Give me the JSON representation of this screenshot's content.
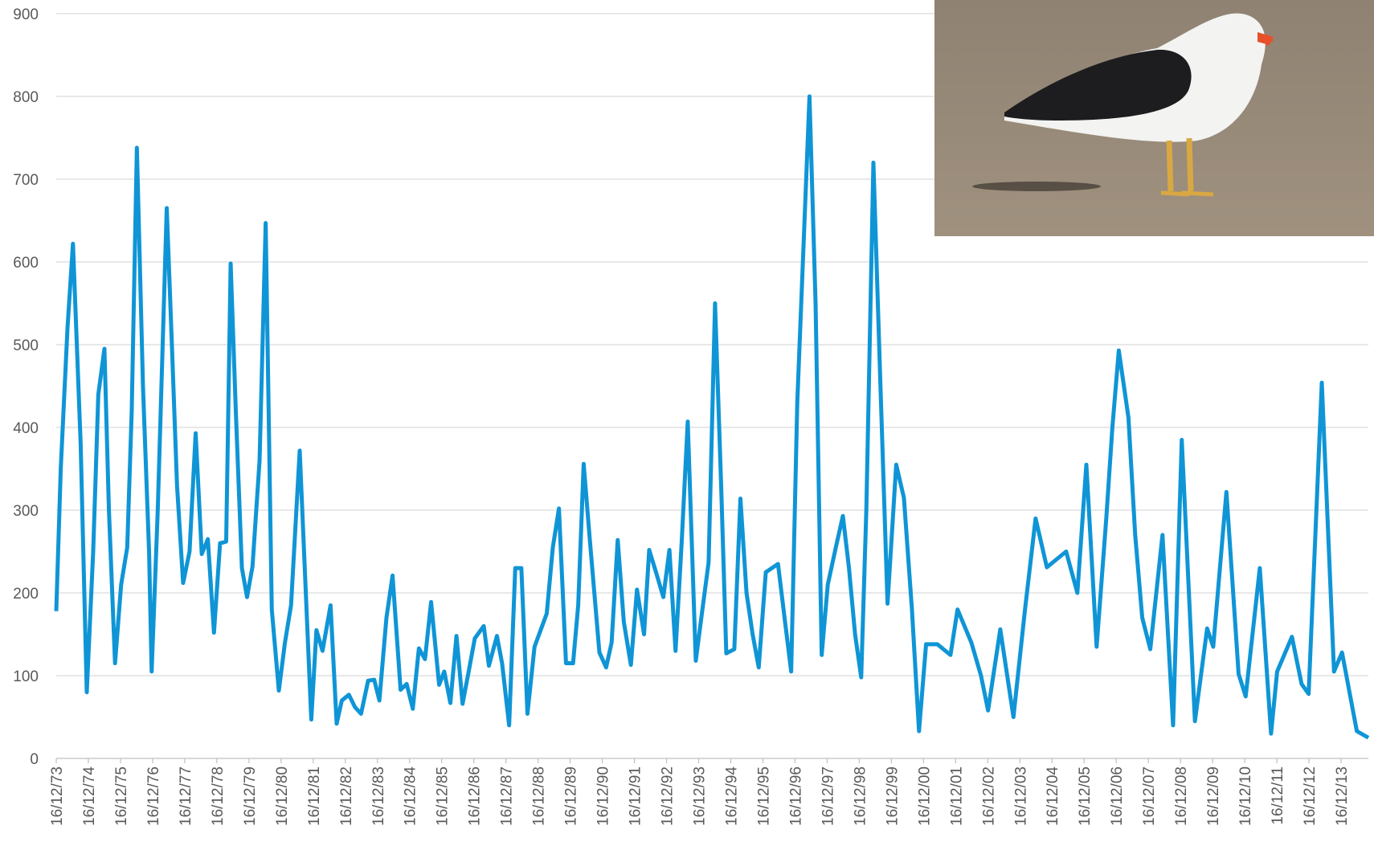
{
  "chart_data": {
    "type": "line",
    "x": [
      1973.96,
      1974.1,
      1974.31,
      1974.48,
      1974.72,
      1974.91,
      1975.11,
      1975.27,
      1975.46,
      1975.6,
      1975.79,
      1975.98,
      1976.17,
      1976.31,
      1976.47,
      1976.66,
      1976.85,
      1976.93,
      1977.12,
      1977.4,
      1977.56,
      1977.72,
      1977.91,
      1978.11,
      1978.3,
      1978.49,
      1978.68,
      1978.87,
      1979.06,
      1979.25,
      1979.39,
      1979.55,
      1979.74,
      1979.9,
      1980.07,
      1980.29,
      1980.48,
      1980.67,
      1980.89,
      1981.08,
      1981.27,
      1981.54,
      1981.73,
      1981.9,
      1982.06,
      1982.25,
      1982.5,
      1982.69,
      1982.85,
      1983.07,
      1983.26,
      1983.45,
      1983.67,
      1983.86,
      1984.02,
      1984.24,
      1984.43,
      1984.68,
      1984.87,
      1985.06,
      1985.25,
      1985.44,
      1985.63,
      1985.88,
      1986.04,
      1986.23,
      1986.42,
      1986.61,
      1986.8,
      1986.99,
      1987.27,
      1987.43,
      1987.68,
      1987.84,
      1988.06,
      1988.25,
      1988.44,
      1988.63,
      1988.85,
      1989.04,
      1989.23,
      1989.42,
      1989.61,
      1989.83,
      1990.05,
      1990.21,
      1990.38,
      1990.57,
      1990.87,
      1991.08,
      1991.25,
      1991.44,
      1991.63,
      1991.85,
      1992.04,
      1992.26,
      1992.42,
      1992.64,
      1992.86,
      1993.05,
      1993.24,
      1993.43,
      1993.62,
      1993.87,
      1994.06,
      1994.27,
      1994.47,
      1994.66,
      1994.82,
      1995.07,
      1995.26,
      1995.45,
      1995.64,
      1995.83,
      1996.05,
      1996.24,
      1996.43,
      1996.65,
      1996.84,
      1997.03,
      1997.41,
      1997.6,
      1997.79,
      1997.98,
      1998.23,
      1998.45,
      1998.64,
      1998.83,
      1999.02,
      1999.18,
      1999.4,
      1999.62,
      1999.84,
      2000.11,
      2000.35,
      2000.6,
      2000.82,
      2001.04,
      2001.39,
      2001.8,
      2002.02,
      2002.45,
      2002.75,
      2002.97,
      2003.35,
      2003.76,
      2004.12,
      2004.45,
      2004.8,
      2005.4,
      2005.75,
      2006.03,
      2006.35,
      2006.65,
      2006.84,
      2007.04,
      2007.34,
      2007.55,
      2007.77,
      2008.02,
      2008.4,
      2008.73,
      2009.0,
      2009.41,
      2009.79,
      2009.98,
      2010.39,
      2010.77,
      2010.99,
      2011.43,
      2011.78,
      2011.97,
      2012.43,
      2012.73,
      2012.95,
      2013.36,
      2013.74,
      2013.99,
      2014.45,
      2014.81
    ],
    "series": [
      {
        "color": "#0f95d6",
        "values": [
          178,
          350,
          520,
          622,
          380,
          80,
          250,
          440,
          495,
          300,
          115,
          210,
          255,
          420,
          738,
          450,
          250,
          105,
          300,
          665,
          500,
          330,
          212,
          250,
          393,
          247,
          265,
          152,
          260,
          262,
          598,
          420,
          230,
          195,
          232,
          360,
          647,
          180,
          82,
          140,
          185,
          372,
          200,
          47,
          155,
          130,
          185,
          42,
          70,
          77,
          62,
          54,
          94,
          95,
          70,
          170,
          221,
          83,
          90,
          60,
          133,
          120,
          189,
          89,
          105,
          67,
          148,
          66,
          105,
          145,
          160,
          112,
          148,
          115,
          40,
          230,
          230,
          54,
          135,
          155,
          175,
          255,
          302,
          115,
          115,
          185,
          356,
          265,
          128,
          110,
          140,
          264,
          165,
          113,
          204,
          150,
          252,
          224,
          195,
          252,
          130,
          260,
          407,
          118,
          175,
          237,
          550,
          330,
          127,
          132,
          314,
          200,
          150,
          110,
          225,
          230,
          235,
          165,
          105,
          430,
          800,
          550,
          125,
          210,
          255,
          293,
          230,
          150,
          98,
          300,
          720,
          450,
          187,
          355,
          315,
          180,
          33,
          138,
          138,
          125,
          180,
          140,
          100,
          58,
          156,
          50,
          180,
          290,
          231,
          250,
          200,
          355,
          135,
          290,
          400,
          493,
          412,
          270,
          170,
          132,
          270,
          40,
          385,
          45,
          157,
          135,
          322,
          102,
          75,
          230,
          30,
          105,
          147,
          90,
          78,
          454,
          105,
          128,
          33,
          25
        ]
      }
    ],
    "xlim": [
      1973.96,
      2014.81
    ],
    "xticks": [
      {
        "value": 1973.96,
        "label": "16/12/73"
      },
      {
        "value": 1974.96,
        "label": "16/12/74"
      },
      {
        "value": 1975.96,
        "label": "16/12/75"
      },
      {
        "value": 1976.96,
        "label": "16/12/76"
      },
      {
        "value": 1977.96,
        "label": "16/12/77"
      },
      {
        "value": 1978.96,
        "label": "16/12/78"
      },
      {
        "value": 1979.96,
        "label": "16/12/79"
      },
      {
        "value": 1980.96,
        "label": "16/12/80"
      },
      {
        "value": 1981.96,
        "label": "16/12/81"
      },
      {
        "value": 1982.96,
        "label": "16/12/82"
      },
      {
        "value": 1983.96,
        "label": "16/12/83"
      },
      {
        "value": 1984.96,
        "label": "16/12/84"
      },
      {
        "value": 1985.96,
        "label": "16/12/85"
      },
      {
        "value": 1986.96,
        "label": "16/12/86"
      },
      {
        "value": 1987.96,
        "label": "16/12/87"
      },
      {
        "value": 1988.96,
        "label": "16/12/88"
      },
      {
        "value": 1989.96,
        "label": "16/12/89"
      },
      {
        "value": 1990.96,
        "label": "16/12/90"
      },
      {
        "value": 1991.96,
        "label": "16/12/91"
      },
      {
        "value": 1992.96,
        "label": "16/12/92"
      },
      {
        "value": 1993.96,
        "label": "16/12/93"
      },
      {
        "value": 1994.96,
        "label": "16/12/94"
      },
      {
        "value": 1995.96,
        "label": "16/12/95"
      },
      {
        "value": 1996.96,
        "label": "16/12/96"
      },
      {
        "value": 1997.96,
        "label": "16/12/97"
      },
      {
        "value": 1998.96,
        "label": "16/12/98"
      },
      {
        "value": 1999.96,
        "label": "16/12/99"
      },
      {
        "value": 2000.96,
        "label": "16/12/00"
      },
      {
        "value": 2001.96,
        "label": "16/12/01"
      },
      {
        "value": 2002.96,
        "label": "16/12/02"
      },
      {
        "value": 2003.96,
        "label": "16/12/03"
      },
      {
        "value": 2004.96,
        "label": "16/12/04"
      },
      {
        "value": 2005.96,
        "label": "16/12/05"
      },
      {
        "value": 2006.96,
        "label": "16/12/06"
      },
      {
        "value": 2007.96,
        "label": "16/12/07"
      },
      {
        "value": 2008.96,
        "label": "16/12/08"
      },
      {
        "value": 2009.96,
        "label": "16/12/09"
      },
      {
        "value": 2010.96,
        "label": "16/12/10"
      },
      {
        "value": 2011.96,
        "label": "16/12/11"
      },
      {
        "value": 2012.96,
        "label": "16/12/12"
      },
      {
        "value": 2013.96,
        "label": "16/12/13"
      }
    ],
    "ylim": [
      0,
      900
    ],
    "yticks": [
      0,
      100,
      200,
      300,
      400,
      500,
      600,
      700,
      800,
      900
    ],
    "grid": true
  }
}
